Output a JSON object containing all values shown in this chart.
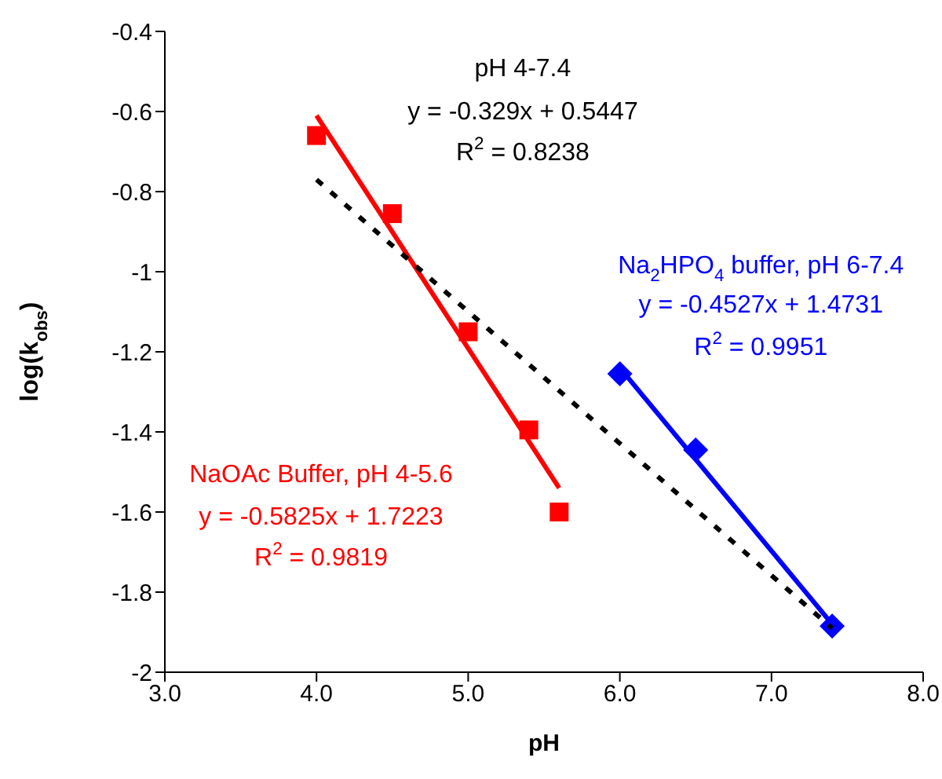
{
  "chart_data": {
    "type": "scatter",
    "xlabel": "pH",
    "ylabel": "log(k$_{obs}$)",
    "xlim": [
      3,
      8
    ],
    "xticks": [
      {
        "value": 3,
        "label": "3.0"
      },
      {
        "value": 4,
        "label": "4.0"
      },
      {
        "value": 5,
        "label": "5.0"
      },
      {
        "value": 6,
        "label": "6.0"
      },
      {
        "value": 7,
        "label": "7.0"
      },
      {
        "value": 8,
        "label": "8.0"
      }
    ],
    "ylim": [
      -2,
      -0.4
    ],
    "yticks": [
      -2,
      -1.8,
      -1.6,
      -1.4,
      -1.2,
      -1,
      -0.8,
      -0.6,
      -0.4
    ],
    "grid": false,
    "legend": false,
    "series": [
      {
        "marker": "square",
        "color": "#ff0000",
        "x": [
          4,
          4.5,
          5,
          5.4,
          5.6
        ],
        "values": [
          -0.66,
          -0.855,
          -1.15,
          -1.395,
          -1.6
        ]
      },
      {
        "marker": "diamond",
        "color": "#0000ff",
        "x": [
          6,
          6.5,
          7.4
        ],
        "values": [
          -1.255,
          -1.445,
          -1.885
        ]
      },
      {
        "type": "line",
        "color": "#ff0000",
        "line_style": "solid",
        "x": [
          4,
          5.6
        ],
        "values": [
          -0.61,
          -1.54
        ]
      },
      {
        "type": "line",
        "color": "#0000ff",
        "line_style": "solid",
        "x": [
          6,
          7.4
        ],
        "values": [
          -1.24,
          -1.88
        ]
      },
      {
        "type": "line",
        "color": "#000000",
        "line_style": "dashed",
        "x": [
          4,
          7.4
        ],
        "values": [
          -0.77,
          -1.89
        ]
      }
    ],
    "annotations": [
      "pH 4-7.4",
      "y = -0.329x + 0.5447",
      "R$^{2}$ = 0.8238",
      "Na$_{2}$HPO$_{4}$ buffer, pH 6-7.4",
      "y = -0.4527x + 1.4731",
      "R$^{2}$ = 0.9951",
      "NaOAc Buffer, pH 4-5.6",
      "y = -0.5825x + 1.7223",
      "R$^{2}$ = 0.9819"
    ]
  }
}
